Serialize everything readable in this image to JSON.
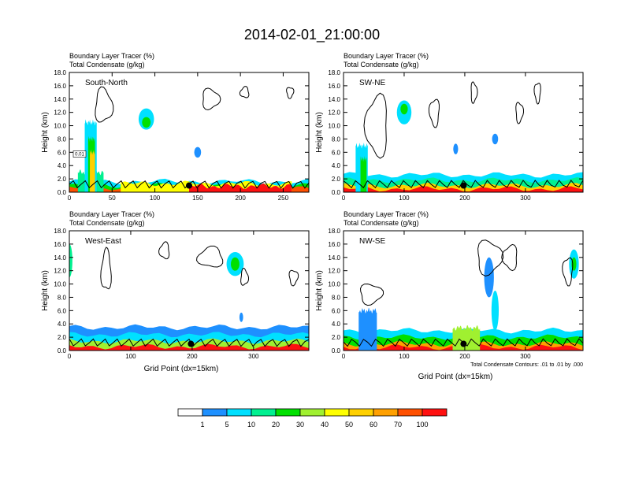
{
  "title": "2014-02-01_21:00:00",
  "colors": {
    "levels": [
      "#ffffff",
      "#1e90ff",
      "#00e0ff",
      "#00f090",
      "#00e000",
      "#a0f030",
      "#ffff00",
      "#ffd000",
      "#ffa000",
      "#ff5000",
      "#ff1010"
    ],
    "contour": "#000000"
  },
  "chart_data": [
    {
      "type": "heatmap",
      "panel_label": "South-North",
      "subtitle_line1": "Boundary Layer Tracer   (%)",
      "subtitle_line2": "Total Condensate   (g/kg)",
      "ylabel": "Height (km)",
      "xlabel": "",
      "xlim": [
        0,
        280
      ],
      "ylim": [
        0,
        18
      ],
      "xticks": [
        "0",
        "50",
        "100",
        "150",
        "200",
        "250"
      ],
      "xtick_values": [
        0,
        50,
        100,
        150,
        200,
        250
      ],
      "yticks": [
        "0.0",
        "2.0",
        "4.0",
        "6.0",
        "8.0",
        "10.0",
        "12.0",
        "14.0",
        "16.0",
        "18.0"
      ],
      "ytick_values": [
        0,
        2,
        4,
        6,
        8,
        10,
        12,
        14,
        16,
        18
      ],
      "marker_x": 140,
      "extra_label": "0.01"
    },
    {
      "type": "heatmap",
      "panel_label": "SW-NE",
      "subtitle_line1": "Boundary Layer Tracer   (%)",
      "subtitle_line2": "Total Condensate   (g/kg)",
      "ylabel": "Height (km)",
      "xlabel": "",
      "xlim": [
        0,
        395
      ],
      "ylim": [
        0,
        18
      ],
      "xticks": [
        "0",
        "100",
        "200",
        "300"
      ],
      "xtick_values": [
        0,
        100,
        200,
        300
      ],
      "yticks": [
        "0.0",
        "2.0",
        "4.0",
        "6.0",
        "8.0",
        "10.0",
        "12.0",
        "14.0",
        "16.0",
        "18.0"
      ],
      "ytick_values": [
        0,
        2,
        4,
        6,
        8,
        10,
        12,
        14,
        16,
        18
      ],
      "marker_x": 198
    },
    {
      "type": "heatmap",
      "panel_label": "West-East",
      "subtitle_line1": "Boundary Layer Tracer   (%)",
      "subtitle_line2": "Total Condensate   (g/kg)",
      "ylabel": "Height (km)",
      "xlabel": "Grid Point (dx=15km)",
      "xlim": [
        0,
        390
      ],
      "ylim": [
        0,
        18
      ],
      "xticks": [
        "0",
        "100",
        "200",
        "300"
      ],
      "xtick_values": [
        0,
        100,
        200,
        300
      ],
      "yticks": [
        "0.0",
        "2.0",
        "4.0",
        "6.0",
        "8.0",
        "10.0",
        "12.0",
        "14.0",
        "16.0",
        "18.0"
      ],
      "ytick_values": [
        0,
        2,
        4,
        6,
        8,
        10,
        12,
        14,
        16,
        18
      ],
      "marker_x": 198
    },
    {
      "type": "heatmap",
      "panel_label": "NW-SE",
      "subtitle_line1": "Boundary Layer Tracer   (%)",
      "subtitle_line2": "Total Condensate   (g/kg)",
      "ylabel": "Height (km)",
      "xlabel": "Grid Point (dx=15km)",
      "xlim": [
        0,
        395
      ],
      "ylim": [
        0,
        18
      ],
      "xticks": [
        "0",
        "100",
        "200",
        "300"
      ],
      "xtick_values": [
        0,
        100,
        200,
        300
      ],
      "yticks": [
        "0.0",
        "2.0",
        "4.0",
        "6.0",
        "8.0",
        "10.0",
        "12.0",
        "14.0",
        "16.0",
        "18.0"
      ],
      "ytick_values": [
        0,
        2,
        4,
        6,
        8,
        10,
        12,
        14,
        16,
        18
      ],
      "marker_x": 198,
      "contour_note": "Total Condensate Contours: .01 to .01 by .000"
    }
  ],
  "colorbar": {
    "labels": [
      "1",
      "5",
      "10",
      "20",
      "30",
      "40",
      "50",
      "60",
      "70",
      "100"
    ]
  }
}
